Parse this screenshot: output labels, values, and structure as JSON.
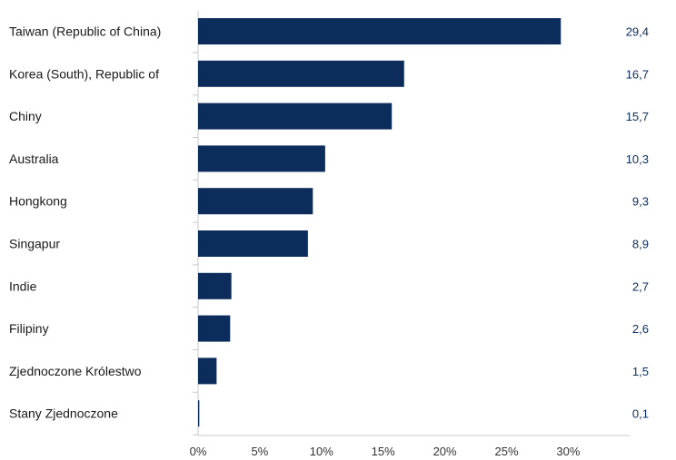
{
  "chart_data": {
    "type": "bar",
    "orientation": "horizontal",
    "categories": [
      "Taiwan (Republic of China)",
      "Korea (South), Republic of",
      "Chiny",
      "Australia",
      "Hongkong",
      "Singapur",
      "Indie",
      "Filipiny",
      "Zjednoczone Królestwo",
      "Stany Zjednoczone"
    ],
    "values": [
      29.4,
      16.7,
      15.7,
      10.3,
      9.3,
      8.9,
      2.7,
      2.6,
      1.5,
      0.1
    ],
    "value_labels": [
      "29,4",
      "16,7",
      "15,7",
      "10,3",
      "9,3",
      "8,9",
      "2,7",
      "2,6",
      "1,5",
      "0,1"
    ],
    "x_ticks": [
      0,
      5,
      10,
      15,
      20,
      25,
      30
    ],
    "x_tick_labels": [
      "0%",
      "5%",
      "10%",
      "15%",
      "20%",
      "25%",
      "30%"
    ],
    "xlim": [
      0,
      35
    ],
    "title": "",
    "xlabel": "",
    "ylabel": "",
    "grid": false,
    "bar_color": "#0c2c5c",
    "value_label_color": "#0c2c5c",
    "axis_color": "#c8c8c8"
  }
}
